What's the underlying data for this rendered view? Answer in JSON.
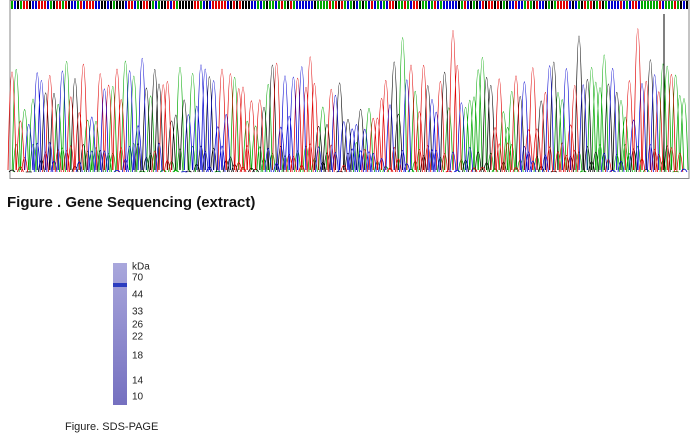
{
  "sequencing": {
    "caption": "Figure . Gene Sequencing (extract)"
  },
  "sds_page": {
    "unit": "kDa",
    "markers": [
      70,
      44,
      33,
      26,
      22,
      18,
      14,
      10
    ],
    "caption": "Figure. SDS-PAGE"
  }
}
